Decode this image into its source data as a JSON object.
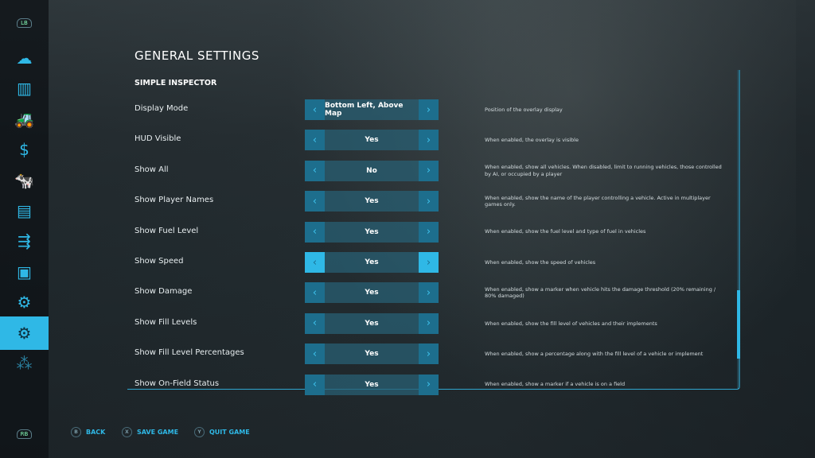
{
  "sidebar": {
    "top_bumper": "LB",
    "bottom_bumper": "RB",
    "items": [
      {
        "icon": "weather-icon",
        "glyph": "☁"
      },
      {
        "icon": "statistics-icon",
        "glyph": "▥"
      },
      {
        "icon": "tractor-icon",
        "glyph": "🚜"
      },
      {
        "icon": "finances-icon",
        "glyph": "$"
      },
      {
        "icon": "animals-icon",
        "glyph": "🐄"
      },
      {
        "icon": "contracts-icon",
        "glyph": "▤"
      },
      {
        "icon": "production-icon",
        "glyph": "⇶"
      },
      {
        "icon": "help-icon",
        "glyph": "▣"
      },
      {
        "icon": "vehicle-settings-icon",
        "glyph": "⚙"
      },
      {
        "icon": "settings-icon",
        "glyph": "⚙",
        "active": true
      },
      {
        "icon": "mods-icon",
        "glyph": "⁂"
      }
    ]
  },
  "header": {
    "title": "GENERAL SETTINGS",
    "section": "SIMPLE INSPECTOR"
  },
  "settings": [
    {
      "label": "Display Mode",
      "value": "Bottom Left, Above Map",
      "desc": "Position of the overlay display"
    },
    {
      "label": "HUD Visible",
      "value": "Yes",
      "desc": "When enabled, the overlay is visible"
    },
    {
      "label": "Show All",
      "value": "No",
      "desc": "When enabled, show all vehicles.  When disabled, limit to running vehicles, those controlled by AI, or occupied by a player"
    },
    {
      "label": "Show Player Names",
      "value": "Yes",
      "desc": "When enabled, show the name of the player controlling a vehicle. Active in multiplayer games only."
    },
    {
      "label": "Show Fuel Level",
      "value": "Yes",
      "desc": "When enabled, show the fuel level and type of fuel in vehicles"
    },
    {
      "label": "Show Speed",
      "value": "Yes",
      "desc": "When enabled, show the speed of vehicles",
      "focused": true
    },
    {
      "label": "Show Damage",
      "value": "Yes",
      "desc": "When enabled, show a marker when vehicle hits the damage threshold (20% remaining / 80% damaged)"
    },
    {
      "label": "Show Fill Levels",
      "value": "Yes",
      "desc": "When enabled, show the fill level of vehicles and their implements"
    },
    {
      "label": "Show Fill Level Percentages",
      "value": "Yes",
      "desc": "When enabled, show a percentage along with the fill level of a vehicle or implement"
    },
    {
      "label": "Show On-Field Status",
      "value": "Yes",
      "desc": "When enabled, show a marker if a vehicle is on a field"
    }
  ],
  "footer": [
    {
      "key": "B",
      "label": "BACK"
    },
    {
      "key": "X",
      "label": "SAVE GAME"
    },
    {
      "key": "Y",
      "label": "QUIT GAME"
    }
  ],
  "colors": {
    "accent": "#2fb8e6"
  }
}
